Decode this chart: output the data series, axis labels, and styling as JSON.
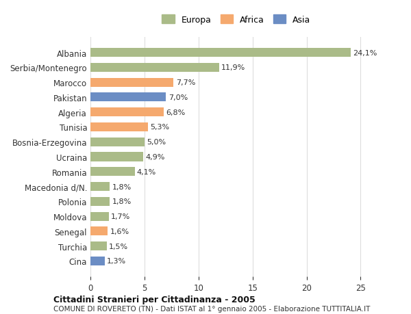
{
  "categories": [
    "Cina",
    "Turchia",
    "Senegal",
    "Moldova",
    "Polonia",
    "Macedonia d/N.",
    "Romania",
    "Ucraina",
    "Bosnia-Erzegovina",
    "Tunisia",
    "Algeria",
    "Pakistan",
    "Marocco",
    "Serbia/Montenegro",
    "Albania"
  ],
  "values": [
    1.3,
    1.5,
    1.6,
    1.7,
    1.8,
    1.8,
    4.1,
    4.9,
    5.0,
    5.3,
    6.8,
    7.0,
    7.7,
    11.9,
    24.1
  ],
  "colors": [
    "#6b8dc4",
    "#aabb88",
    "#f5a96e",
    "#aabb88",
    "#aabb88",
    "#aabb88",
    "#aabb88",
    "#aabb88",
    "#aabb88",
    "#f5a96e",
    "#f5a96e",
    "#6b8dc4",
    "#f5a96e",
    "#aabb88",
    "#aabb88"
  ],
  "labels": [
    "1,3%",
    "1,5%",
    "1,6%",
    "1,7%",
    "1,8%",
    "1,8%",
    "4,1%",
    "4,9%",
    "5,0%",
    "5,3%",
    "6,8%",
    "7,0%",
    "7,7%",
    "11,9%",
    "24,1%"
  ],
  "legend": [
    {
      "label": "Europa",
      "color": "#aabb88"
    },
    {
      "label": "Africa",
      "color": "#f5a96e"
    },
    {
      "label": "Asia",
      "color": "#6b8dc4"
    }
  ],
  "title": "Cittadini Stranieri per Cittadinanza - 2005",
  "subtitle": "COMUNE DI ROVERETO (TN) - Dati ISTAT al 1° gennaio 2005 - Elaborazione TUTTITALIA.IT",
  "xlim": [
    0,
    27
  ],
  "xticks": [
    0,
    5,
    10,
    15,
    20,
    25
  ],
  "background_color": "#ffffff",
  "grid_color": "#dddddd"
}
